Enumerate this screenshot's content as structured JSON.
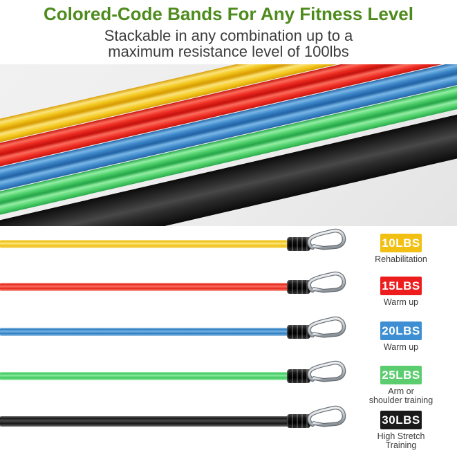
{
  "header": {
    "title": "Colored-Code Bands For Any Fitness Level",
    "subtitle": "Stackable in any combination up to a\nmaximum resistance level of 100lbs",
    "title_color": "#4e8b1d",
    "subtitle_color": "#3d3d3d"
  },
  "hero_photo": {
    "description": "five resistance band tubes lying diagonally",
    "background_color": "#ececec",
    "stripe_angle_deg": -13,
    "stripes": [
      {
        "name": "yellow",
        "dark": "#d99f06",
        "mid": "#f3c71d",
        "light": "#fbe47a"
      },
      {
        "name": "red",
        "dark": "#c8140f",
        "mid": "#ee2d23",
        "light": "#fb6d5c"
      },
      {
        "name": "blue",
        "dark": "#2566a8",
        "mid": "#3d87c9",
        "light": "#7ab7e6"
      },
      {
        "name": "green",
        "dark": "#2aa94c",
        "mid": "#4ed06a",
        "light": "#93eea4"
      },
      {
        "name": "black",
        "dark": "#0b0b0b",
        "mid": "#2d2d2d",
        "light": "#484848"
      }
    ]
  },
  "bands": [
    {
      "id": "yellow",
      "weight_label": "10LBS",
      "description": "Rehabilitation",
      "badge_color": "#f2c013",
      "badge_text_color": "#ffffff",
      "tube": {
        "edge": "#f7e391",
        "core": "#efbf12",
        "hi": "#fce87f"
      }
    },
    {
      "id": "red",
      "weight_label": "15LBS",
      "description": "Warm up",
      "badge_color": "#ee1d1d",
      "badge_text_color": "#ffffff",
      "tube": {
        "edge": "#f9a89b",
        "core": "#e7291e",
        "hi": "#fc6f5e"
      }
    },
    {
      "id": "blue",
      "weight_label": "20LBS",
      "description": "Warm up",
      "badge_color": "#3d8ed2",
      "badge_text_color": "#ffffff",
      "tube": {
        "edge": "#a3c9e8",
        "core": "#2f7ec4",
        "hi": "#74b2e2"
      }
    },
    {
      "id": "green",
      "weight_label": "25LBS",
      "description": "Arm or\nshoulder training",
      "badge_color": "#5bcd6e",
      "badge_text_color": "#ffffff",
      "tube": {
        "edge": "#aaf0b7",
        "core": "#3cc75c",
        "hi": "#8deb9e"
      }
    },
    {
      "id": "black",
      "weight_label": "30LBS",
      "description": "High Stretch\nTraining",
      "badge_color": "#1a1a1a",
      "badge_text_color": "#ffffff",
      "tube": {
        "edge": "#6e6e6e",
        "core": "#181818",
        "hi": "#4a4a4a"
      }
    }
  ]
}
